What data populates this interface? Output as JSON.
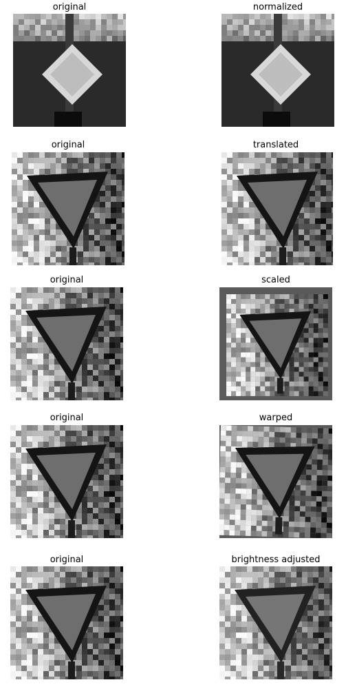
{
  "figures": [
    {
      "left_title": "original",
      "right_title": "normalized",
      "sign": "diamond",
      "right_variant": "normalized"
    },
    {
      "left_title": "original",
      "right_title": "translated",
      "sign": "yield",
      "right_variant": "translated"
    },
    {
      "left_title": "original",
      "right_title": "scaled",
      "sign": "yield",
      "right_variant": "scaled"
    },
    {
      "left_title": "original",
      "right_title": "warped",
      "sign": "yield",
      "right_variant": "warped"
    },
    {
      "left_title": "original",
      "right_title": "brightness adjusted",
      "sign": "yield",
      "right_variant": "brightness"
    }
  ],
  "colors": {
    "background": "#ffffff",
    "border_gray": "#5a5a5a",
    "sign_fill": "#6e6e6e",
    "sign_border": "#141414",
    "diamond_fill": "#bdbdbd",
    "dark_bg": "#2a2a2a"
  }
}
